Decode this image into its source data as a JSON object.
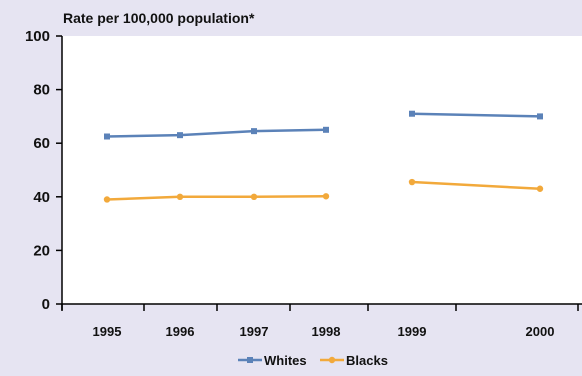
{
  "chart_data": {
    "type": "line",
    "ylabel": "Rate per 100,000  population*",
    "categories": [
      "1995",
      "1996",
      "1997",
      "1998",
      "1999",
      "2000"
    ],
    "ylim": [
      0,
      100
    ],
    "yticks": [
      "0",
      "20",
      "40",
      "60",
      "80",
      "100"
    ],
    "grid": false,
    "legend_position": "bottom-center",
    "series": [
      {
        "name": "Whites",
        "color": "#5b82b8",
        "marker": "square",
        "segments": [
          {
            "x": [
              "1995",
              "1996",
              "1997",
              "1998"
            ],
            "values": [
              62.5,
              63,
              64.5,
              65
            ]
          },
          {
            "x": [
              "1999",
              "2000"
            ],
            "values": [
              71,
              70
            ]
          }
        ]
      },
      {
        "name": "Blacks",
        "color": "#f2a93b",
        "marker": "circle",
        "segments": [
          {
            "x": [
              "1995",
              "1996",
              "1997",
              "1998"
            ],
            "values": [
              39,
              40,
              40,
              40.2
            ]
          },
          {
            "x": [
              "1999",
              "2000"
            ],
            "values": [
              45.5,
              43
            ]
          }
        ]
      }
    ]
  }
}
